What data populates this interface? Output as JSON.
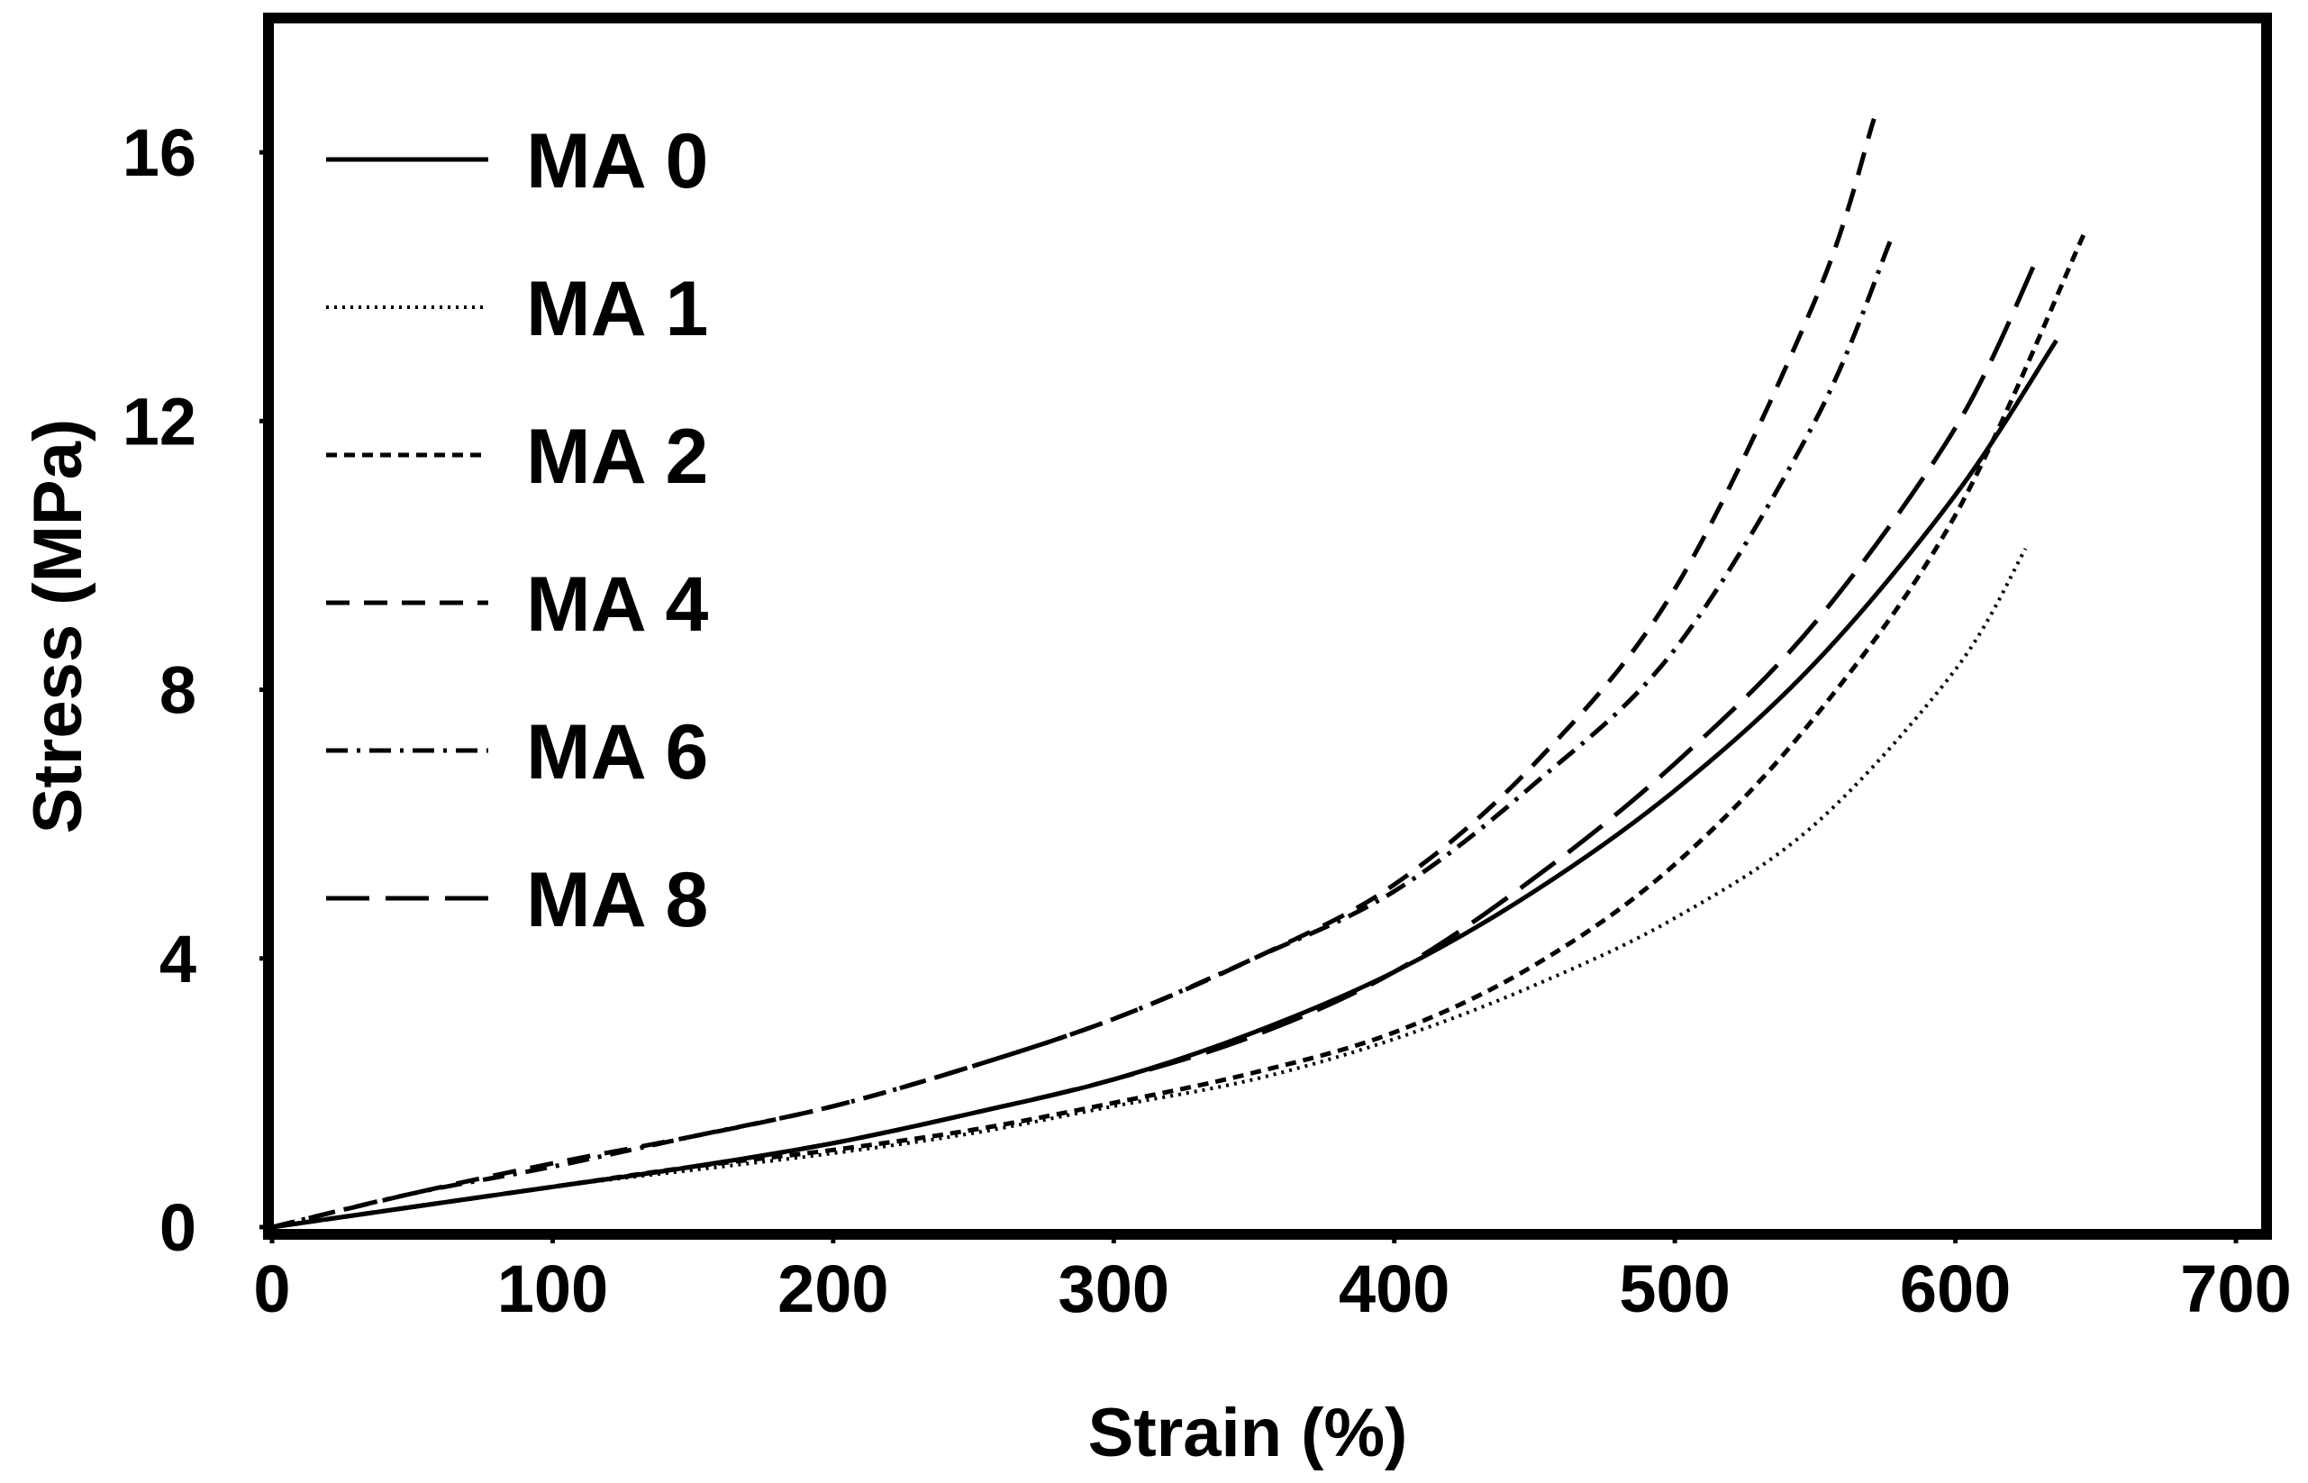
{
  "chart_data": {
    "type": "line",
    "title": "",
    "xlabel": "Strain (%)",
    "ylabel": "Stress (MPa)",
    "xlim": [
      0,
      700
    ],
    "ylim": [
      0,
      18
    ],
    "xticks": [
      0,
      100,
      200,
      300,
      400,
      500,
      600,
      700
    ],
    "yticks": [
      0,
      4,
      8,
      12,
      16
    ],
    "xtick_labels": [
      "0",
      "100",
      "200",
      "300",
      "400",
      "500",
      "600",
      "700"
    ],
    "ytick_labels": [
      "0",
      "4",
      "8",
      "12",
      "16"
    ],
    "grid": false,
    "legend_position": "top-left",
    "series": [
      {
        "name": "MA 0",
        "style": "solid",
        "x": [
          0,
          50,
          100,
          150,
          200,
          250,
          300,
          350,
          400,
          450,
          500,
          550,
          600,
          636
        ],
        "y": [
          0,
          0.3,
          0.6,
          0.9,
          1.25,
          1.7,
          2.2,
          2.9,
          3.8,
          5.0,
          6.5,
          8.4,
          10.9,
          13.2
        ]
      },
      {
        "name": "MA 1",
        "style": "dotted",
        "x": [
          0,
          50,
          100,
          150,
          200,
          250,
          300,
          350,
          400,
          450,
          500,
          550,
          600,
          625
        ],
        "y": [
          0,
          0.3,
          0.6,
          0.85,
          1.1,
          1.4,
          1.8,
          2.2,
          2.8,
          3.6,
          4.6,
          6.0,
          8.3,
          10.1
        ]
      },
      {
        "name": "MA 2",
        "style": "short-dash",
        "x": [
          0,
          50,
          100,
          150,
          200,
          250,
          300,
          350,
          400,
          450,
          500,
          550,
          600,
          646
        ],
        "y": [
          0,
          0.3,
          0.6,
          0.9,
          1.15,
          1.45,
          1.85,
          2.3,
          2.9,
          3.9,
          5.4,
          7.6,
          10.6,
          14.8
        ]
      },
      {
        "name": "MA 4",
        "style": "dash",
        "x": [
          0,
          50,
          100,
          150,
          200,
          250,
          300,
          350,
          400,
          450,
          500,
          550,
          571
        ],
        "y": [
          0,
          0.5,
          0.95,
          1.35,
          1.8,
          2.4,
          3.1,
          4.0,
          5.1,
          6.9,
          9.5,
          13.8,
          16.5
        ]
      },
      {
        "name": "MA 6",
        "style": "dash-dot",
        "x": [
          0,
          50,
          100,
          150,
          200,
          250,
          300,
          350,
          400,
          450,
          500,
          550,
          577
        ],
        "y": [
          0,
          0.5,
          0.9,
          1.35,
          1.8,
          2.4,
          3.1,
          4.0,
          5.0,
          6.6,
          8.6,
          12.0,
          14.7
        ]
      },
      {
        "name": "MA 8",
        "style": "long-dash",
        "x": [
          0,
          50,
          100,
          150,
          200,
          250,
          300,
          350,
          400,
          450,
          500,
          550,
          600,
          630
        ],
        "y": [
          0,
          0.3,
          0.6,
          0.9,
          1.25,
          1.7,
          2.2,
          2.85,
          3.8,
          5.2,
          6.9,
          9.0,
          11.9,
          14.5
        ]
      }
    ]
  }
}
